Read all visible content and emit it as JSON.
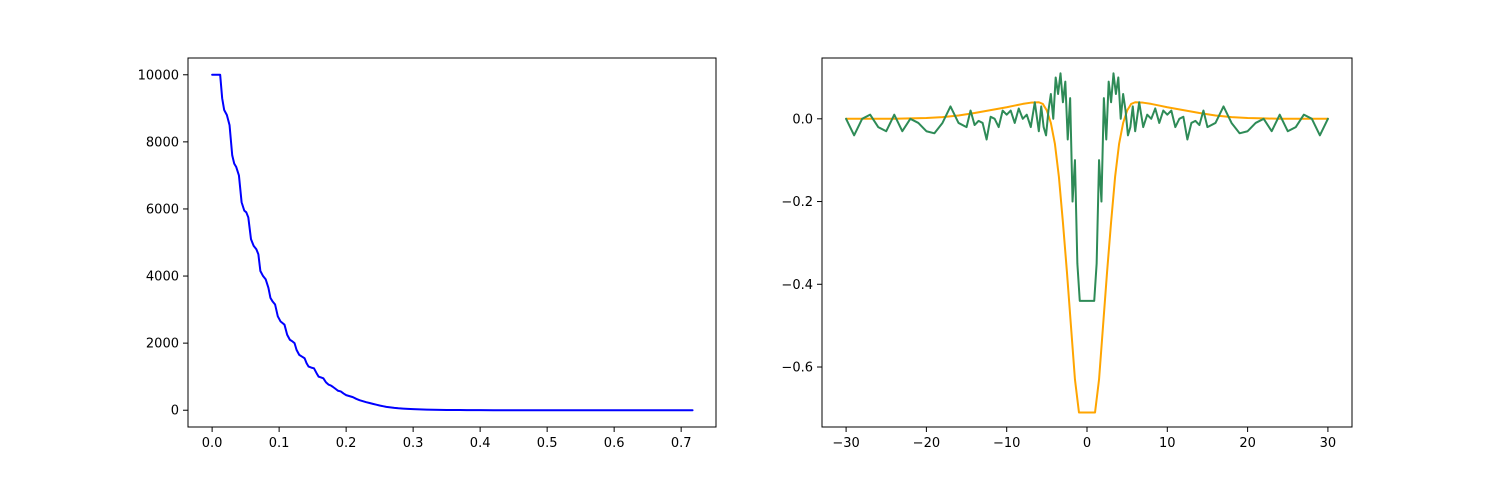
{
  "chart_data": [
    {
      "type": "line",
      "title": "",
      "xlabel": "",
      "ylabel": "",
      "xlim": [
        -0.036,
        0.752
      ],
      "ylim": [
        -500,
        10500
      ],
      "grid": false,
      "xticks": [
        0.0,
        0.1,
        0.2,
        0.3,
        0.4,
        0.5,
        0.6,
        0.7
      ],
      "xtick_labels": [
        "0.0",
        "0.1",
        "0.2",
        "0.3",
        "0.4",
        "0.5",
        "0.6",
        "0.7"
      ],
      "yticks": [
        0,
        2000,
        4000,
        6000,
        8000,
        10000
      ],
      "ytick_labels": [
        "0",
        "2000",
        "4000",
        "6000",
        "8000",
        "10000"
      ],
      "series": [
        {
          "color": "#0000ff",
          "x": [
            0.0,
            0.006,
            0.012,
            0.015,
            0.018,
            0.022,
            0.026,
            0.03,
            0.033,
            0.036,
            0.04,
            0.044,
            0.048,
            0.051,
            0.054,
            0.058,
            0.062,
            0.066,
            0.069,
            0.072,
            0.076,
            0.08,
            0.084,
            0.087,
            0.09,
            0.094,
            0.098,
            0.102,
            0.105,
            0.108,
            0.112,
            0.116,
            0.12,
            0.123,
            0.126,
            0.13,
            0.134,
            0.138,
            0.141,
            0.144,
            0.148,
            0.152,
            0.156,
            0.159,
            0.162,
            0.166,
            0.17,
            0.174,
            0.177,
            0.18,
            0.184,
            0.188,
            0.192,
            0.196,
            0.2,
            0.205,
            0.21,
            0.215,
            0.22,
            0.225,
            0.23,
            0.235,
            0.24,
            0.245,
            0.25,
            0.255,
            0.26,
            0.266,
            0.272,
            0.278,
            0.285,
            0.292,
            0.3,
            0.31,
            0.32,
            0.33,
            0.34,
            0.35,
            0.36,
            0.37,
            0.38,
            0.39,
            0.4,
            0.42,
            0.44,
            0.46,
            0.48,
            0.5,
            0.53,
            0.56,
            0.6,
            0.65,
            0.7,
            0.717
          ],
          "y": [
            10000,
            10000,
            10000,
            9300,
            8950,
            8800,
            8500,
            7600,
            7350,
            7250,
            7000,
            6200,
            5950,
            5900,
            5750,
            5100,
            4900,
            4800,
            4650,
            4150,
            4000,
            3900,
            3650,
            3350,
            3250,
            3150,
            2800,
            2650,
            2600,
            2550,
            2250,
            2100,
            2050,
            2000,
            1800,
            1650,
            1600,
            1550,
            1400,
            1300,
            1270,
            1250,
            1100,
            1000,
            980,
            950,
            830,
            760,
            740,
            700,
            640,
            580,
            560,
            500,
            450,
            420,
            390,
            340,
            300,
            270,
            240,
            215,
            190,
            165,
            140,
            120,
            100,
            85,
            70,
            58,
            48,
            40,
            32,
            25,
            19,
            14,
            11,
            8,
            6,
            5,
            4,
            3,
            2,
            1,
            1,
            0,
            0,
            0,
            0,
            0,
            0,
            0,
            0,
            0
          ]
        }
      ]
    },
    {
      "type": "line",
      "title": "",
      "xlabel": "",
      "ylabel": "",
      "xlim": [
        -33,
        33
      ],
      "ylim": [
        -0.745,
        0.147
      ],
      "grid": false,
      "xticks": [
        -30,
        -20,
        -10,
        0,
        10,
        20,
        30
      ],
      "xtick_labels": [
        "−30",
        "−20",
        "−10",
        "0",
        "10",
        "20",
        "30"
      ],
      "yticks": [
        0.0,
        -0.2,
        -0.4,
        -0.6
      ],
      "ytick_labels": [
        "0.0",
        "−0.2",
        "−0.4",
        "−0.6"
      ],
      "series": [
        {
          "color": "#ffa500",
          "x": [
            -30,
            -28,
            -26,
            -24,
            -22,
            -20,
            -18,
            -16,
            -14,
            -12,
            -10,
            -9,
            -8,
            -7,
            -6,
            -5.5,
            -5,
            -4.5,
            -4,
            -3.5,
            -3,
            -2.5,
            -2,
            -1.5,
            -1,
            1,
            1.5,
            2,
            2.5,
            3,
            3.5,
            4,
            4.5,
            5,
            5.5,
            6,
            7,
            8,
            9,
            10,
            12,
            14,
            16,
            18,
            20,
            22,
            24,
            26,
            28,
            30
          ],
          "y": [
            0.0,
            0.0,
            0.0,
            0.0,
            0.001,
            0.002,
            0.004,
            0.008,
            0.014,
            0.021,
            0.028,
            0.032,
            0.036,
            0.039,
            0.04,
            0.036,
            0.02,
            -0.01,
            -0.06,
            -0.14,
            -0.25,
            -0.37,
            -0.5,
            -0.63,
            -0.71,
            -0.71,
            -0.63,
            -0.5,
            -0.37,
            -0.25,
            -0.14,
            -0.06,
            -0.01,
            0.02,
            0.036,
            0.04,
            0.039,
            0.036,
            0.032,
            0.028,
            0.021,
            0.014,
            0.008,
            0.004,
            0.002,
            0.001,
            0.0,
            0.0,
            0.0,
            0.0
          ]
        },
        {
          "color": "#2e8b57",
          "x": [
            -30,
            -29,
            -28,
            -27,
            -26,
            -25,
            -24,
            -23,
            -22,
            -21,
            -20,
            -19,
            -18,
            -17,
            -16,
            -15,
            -14.5,
            -14,
            -13.5,
            -13,
            -12.5,
            -12,
            -11.5,
            -11,
            -10.5,
            -10,
            -9.5,
            -9,
            -8.5,
            -8,
            -7.5,
            -7,
            -6.5,
            -6,
            -5.7,
            -5.4,
            -5.1,
            -4.8,
            -4.5,
            -4.2,
            -3.9,
            -3.6,
            -3.3,
            -3.0,
            -2.7,
            -2.4,
            -2.1,
            -1.8,
            -1.5,
            -1.2,
            -0.9,
            0.9,
            1.2,
            1.5,
            1.8,
            2.1,
            2.4,
            2.7,
            3.0,
            3.3,
            3.6,
            3.9,
            4.2,
            4.5,
            4.8,
            5.1,
            5.4,
            5.7,
            6,
            6.5,
            7,
            7.5,
            8,
            8.5,
            9,
            9.5,
            10,
            10.5,
            11,
            11.5,
            12,
            12.5,
            13,
            13.5,
            14,
            14.5,
            15,
            16,
            17,
            18,
            19,
            20,
            21,
            22,
            23,
            24,
            25,
            26,
            27,
            28,
            29,
            30
          ],
          "y": [
            0.0,
            -0.04,
            0.0,
            0.01,
            -0.02,
            -0.03,
            0.01,
            -0.03,
            0.0,
            -0.01,
            -0.03,
            -0.035,
            -0.01,
            0.03,
            -0.01,
            -0.02,
            0.02,
            -0.015,
            -0.005,
            -0.01,
            -0.05,
            0.005,
            0.0,
            -0.02,
            0.02,
            0.01,
            0.02,
            -0.01,
            0.025,
            0.0,
            0.01,
            -0.02,
            0.04,
            -0.03,
            0.03,
            -0.02,
            -0.04,
            0.02,
            0.06,
            0.0,
            0.1,
            0.06,
            0.11,
            0.04,
            0.09,
            -0.05,
            0.05,
            -0.2,
            -0.1,
            -0.35,
            -0.44,
            -0.44,
            -0.35,
            -0.1,
            -0.2,
            0.05,
            -0.05,
            0.09,
            0.04,
            0.11,
            0.06,
            0.1,
            0.0,
            0.06,
            0.02,
            -0.04,
            -0.02,
            0.03,
            -0.03,
            0.04,
            -0.02,
            0.01,
            0.0,
            0.025,
            -0.01,
            0.02,
            0.01,
            0.02,
            -0.02,
            0.0,
            0.005,
            -0.05,
            -0.01,
            -0.005,
            -0.015,
            0.02,
            -0.02,
            -0.01,
            0.03,
            -0.01,
            -0.035,
            -0.03,
            -0.01,
            0.0,
            -0.03,
            0.01,
            -0.03,
            -0.02,
            0.01,
            0.0,
            -0.04,
            0.0
          ]
        }
      ]
    }
  ]
}
